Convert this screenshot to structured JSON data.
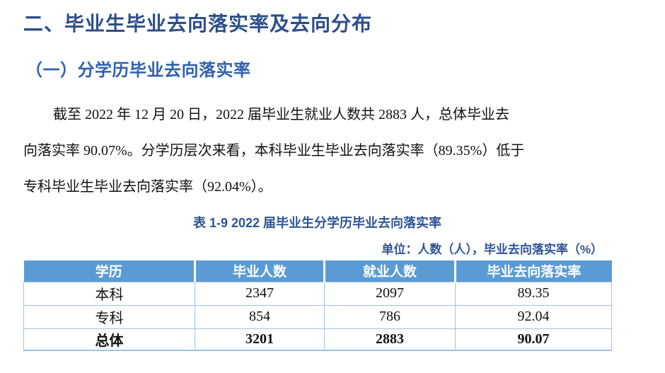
{
  "document": {
    "heading": "二、毕业生毕业去向落实率及去向分布",
    "subheading": "（一）分学历毕业去向落实率",
    "paragraph": {
      "lines": [
        "截至 2022 年 12 月 20 日，2022 届毕业生就业人数共 2883 人，总体毕业去",
        "向落实率 90.07%。分学历层次来看，本科毕业生毕业去向落实率（89.35%）低于",
        "专科毕业生毕业去向落实率（92.04%）。"
      ],
      "full_text": "截至 2022 年 12 月 20 日，2022 届毕业生就业人数共 2883 人，总体毕业去向落实率 90.07%。分学历层次来看，本科毕业生毕业去向落实率（89.35%）低于专科毕业生毕业去向落实率（92.04%）。"
    }
  },
  "table": {
    "title": "表 1-9 2022 届毕业生分学历毕业去向落实率",
    "unit_note": "单位：人数（人），毕业去向落实率（%）",
    "headers": [
      "学历",
      "毕业人数",
      "就业人数",
      "毕业去向落实率"
    ],
    "rows": [
      {
        "cells": [
          "本科",
          "2347",
          "2097",
          "89.35"
        ],
        "emphasis": false
      },
      {
        "cells": [
          "专科",
          "854",
          "786",
          "92.04"
        ],
        "emphasis": false
      },
      {
        "cells": [
          "总体",
          "3201",
          "2883",
          "90.07"
        ],
        "emphasis": true
      }
    ]
  },
  "colors": {
    "main_heading": "#2C4E8A",
    "sub_heading": "#3161AE",
    "caption_blue": "#2F5496",
    "table_header_bg": "#5B9BD5",
    "table_border": "#9CC2E5",
    "body_text": "#111111"
  }
}
